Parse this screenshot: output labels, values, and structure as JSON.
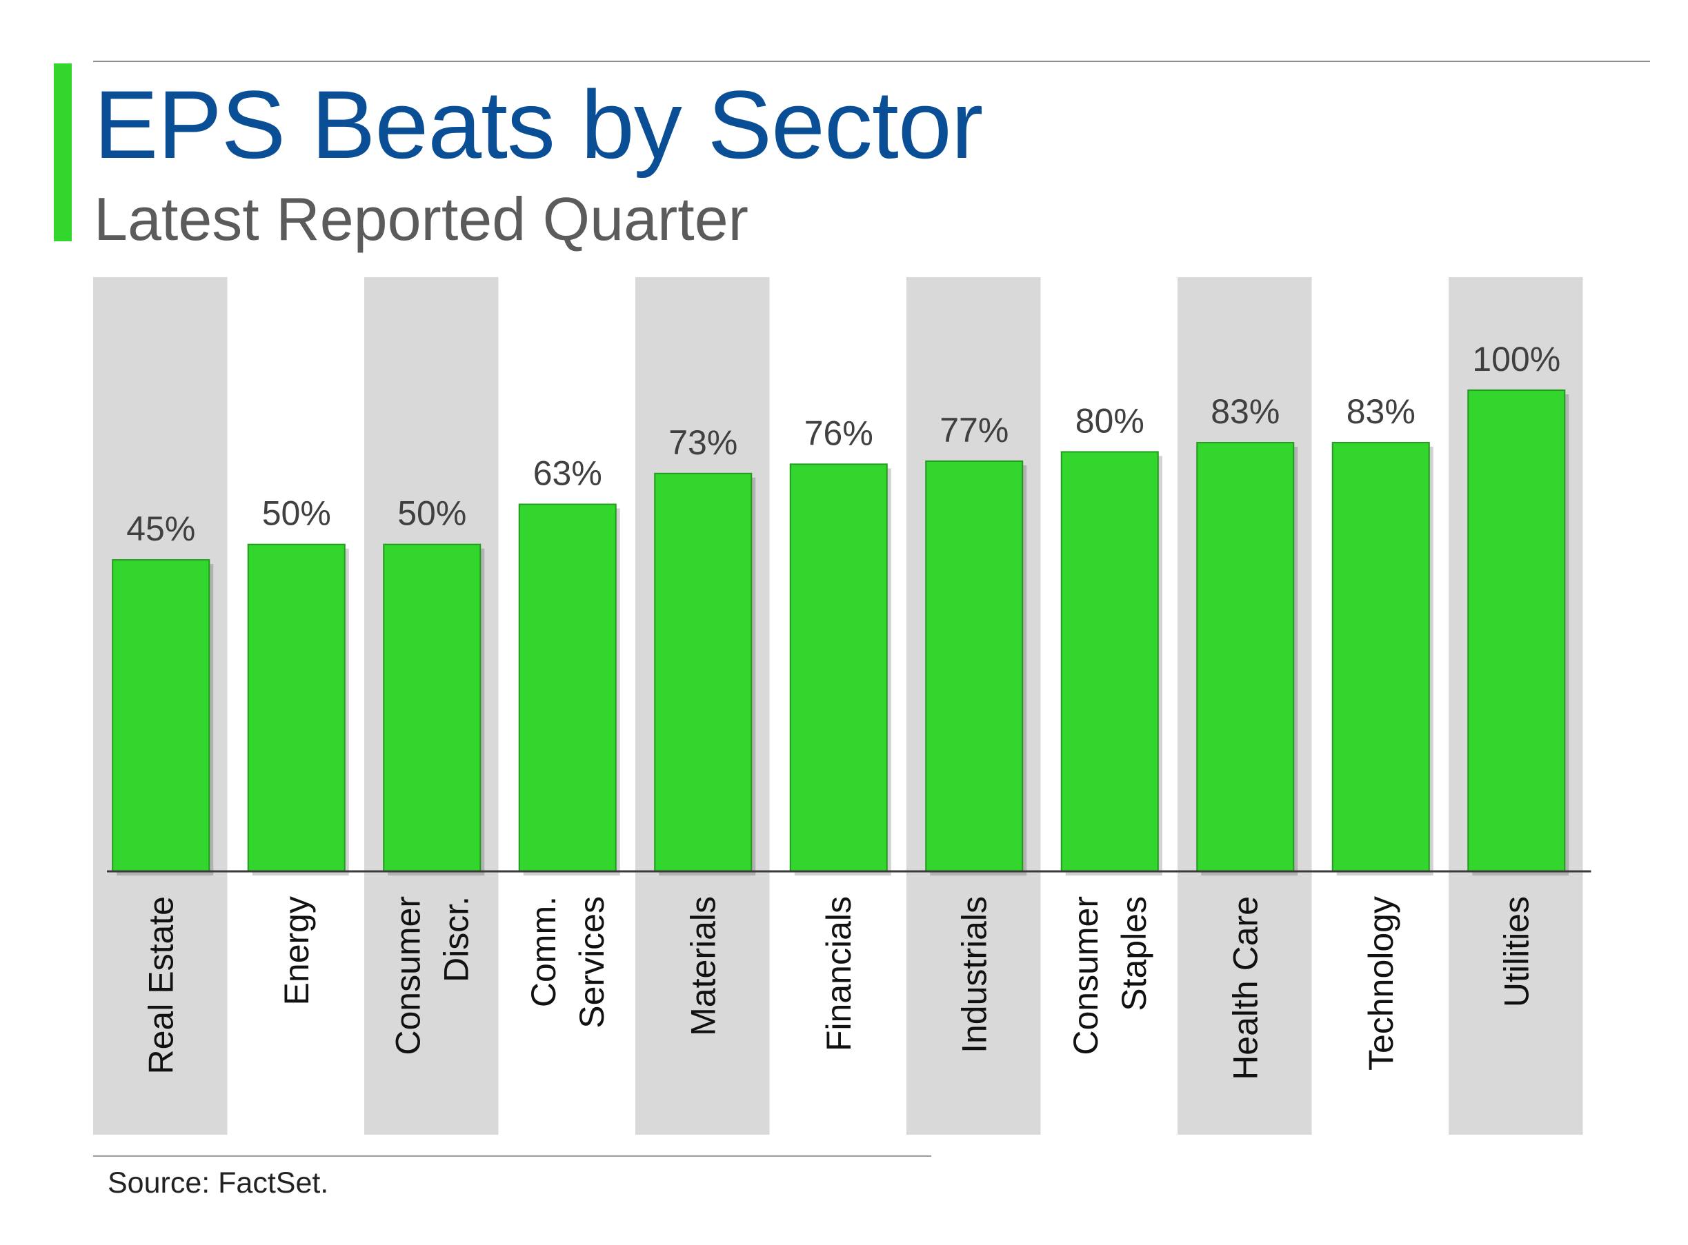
{
  "header": {
    "title": "EPS Beats by Sector",
    "subtitle": "Latest Reported Quarter"
  },
  "footer": {
    "source": "Source: FactSet."
  },
  "colors": {
    "accent": "#33d62c",
    "bar": "#33d62c",
    "bar_border": "#239a1f",
    "title": "#0a4f96",
    "band": "#d9d9d9",
    "label": "#404040"
  },
  "chart_data": {
    "type": "bar",
    "title": "EPS Beats by Sector",
    "subtitle": "Latest Reported Quarter",
    "categories": [
      [
        "Real Estate"
      ],
      [
        "Energy"
      ],
      [
        "Consumer",
        "Discr."
      ],
      [
        "Comm.",
        "Services"
      ],
      [
        "Materials"
      ],
      [
        "Financials"
      ],
      [
        "Industrials"
      ],
      [
        "Consumer",
        "Staples"
      ],
      [
        "Health Care"
      ],
      [
        "Technology"
      ],
      [
        "Utilities"
      ]
    ],
    "values": [
      45,
      50,
      50,
      63,
      73,
      76,
      77,
      80,
      83,
      83,
      100
    ],
    "value_labels": [
      "45%",
      "50%",
      "50%",
      "63%",
      "73%",
      "76%",
      "77%",
      "80%",
      "83%",
      "83%",
      "100%"
    ],
    "ylim": [
      0,
      100
    ],
    "axis_min": -56,
    "grid": false,
    "legend": "none",
    "category_label_orientation": "vertical",
    "alternating_bands": true
  }
}
